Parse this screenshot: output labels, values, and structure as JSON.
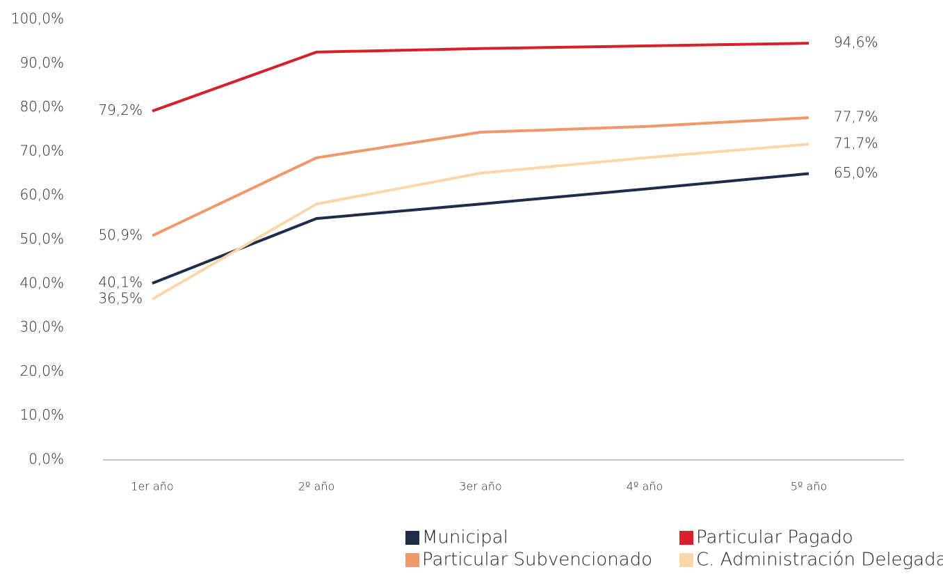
{
  "chart_data": {
    "type": "line",
    "categories": [
      "1er año",
      "2º año",
      "3er año",
      "4º año",
      "5º año"
    ],
    "series": [
      {
        "name": "Municipal",
        "color": "#1f2d4a",
        "values": [
          40.1,
          54.8,
          58.1,
          61.5,
          65.0
        ],
        "value_labels": [
          "40,1%",
          null,
          null,
          null,
          "65,0%"
        ]
      },
      {
        "name": "Particular Pagado",
        "color": "#d7202a",
        "values": [
          79.2,
          92.6,
          93.4,
          94.0,
          94.6
        ],
        "value_labels": [
          "79,2%",
          null,
          null,
          null,
          "94,6%"
        ]
      },
      {
        "name": "Particular Subvencionado",
        "color": "#f0976b",
        "values": [
          50.9,
          68.6,
          74.4,
          75.7,
          77.7
        ],
        "value_labels": [
          "50,9%",
          null,
          null,
          null,
          "77,7%"
        ]
      },
      {
        "name": "C. Administración Delegada",
        "color": "#fad7a8",
        "values": [
          36.5,
          58.1,
          65.1,
          68.6,
          71.7
        ],
        "value_labels": [
          "36,5%",
          null,
          null,
          null,
          "71,7%"
        ]
      }
    ],
    "ylim": [
      0,
      100
    ],
    "yticks": [
      {
        "value": 0,
        "label": "0,0%"
      },
      {
        "value": 10,
        "label": "10,0%"
      },
      {
        "value": 20,
        "label": "20,0%"
      },
      {
        "value": 30,
        "label": "30,0%"
      },
      {
        "value": 40,
        "label": "40,0%"
      },
      {
        "value": 50,
        "label": "50,0%"
      },
      {
        "value": 60,
        "label": "60,0%"
      },
      {
        "value": 70,
        "label": "70,0%"
      },
      {
        "value": 80,
        "label": "80,0%"
      },
      {
        "value": 90,
        "label": "90,0%"
      },
      {
        "value": 100,
        "label": "100,0%"
      }
    ],
    "grid": false
  }
}
